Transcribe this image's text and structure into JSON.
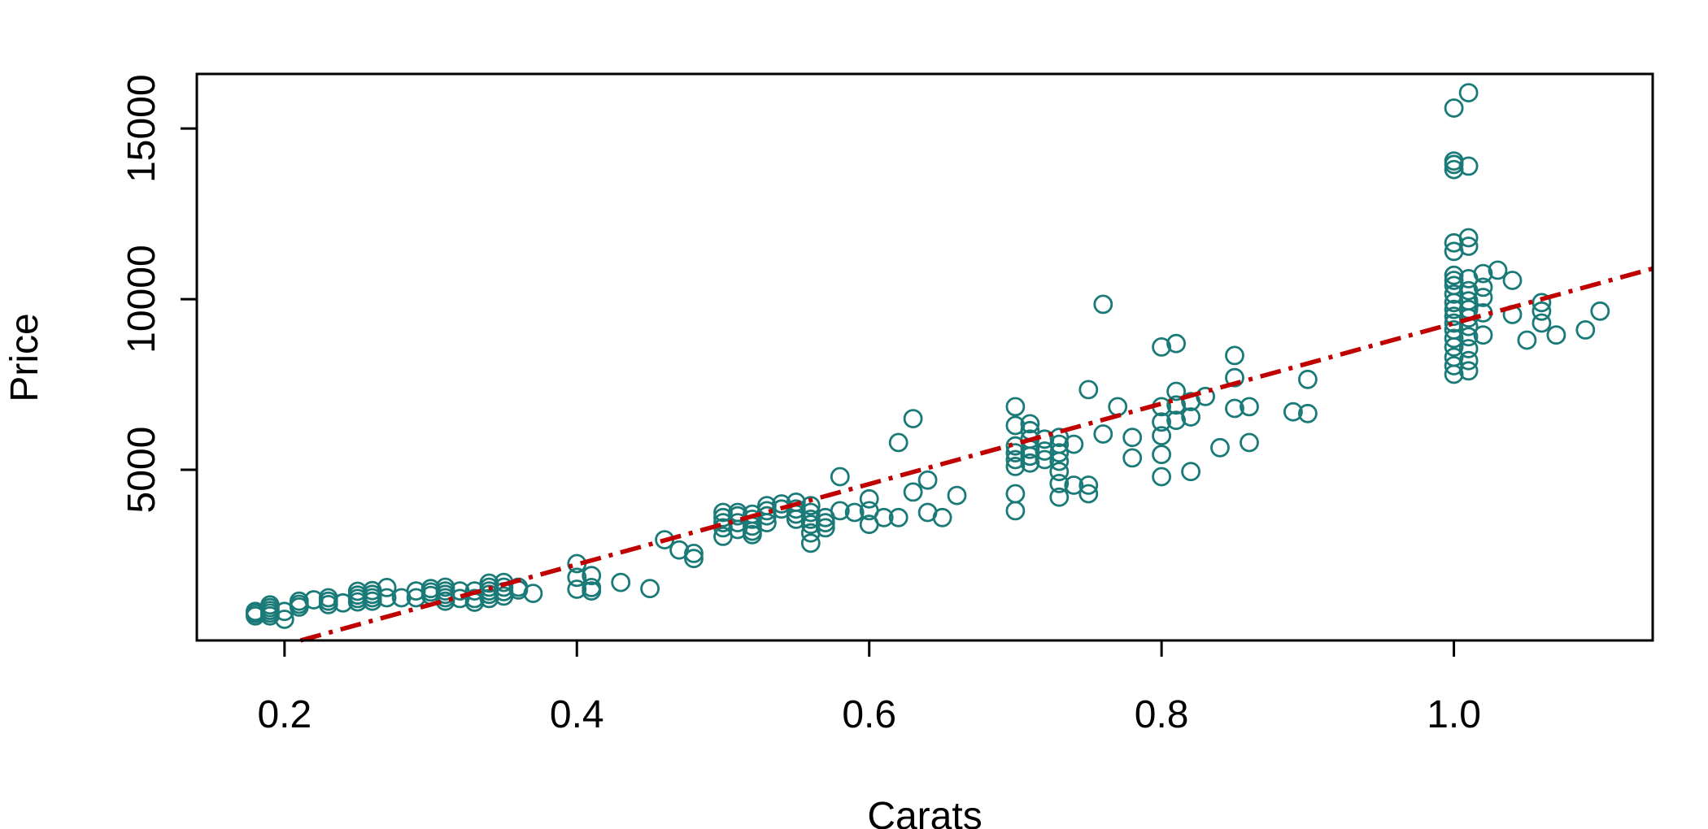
{
  "chart_data": {
    "type": "scatter",
    "title": "",
    "xlabel": "Carats",
    "ylabel": "Price",
    "xlim": [
      0.14,
      1.136
    ],
    "ylim": [
      0,
      16600
    ],
    "x_ticks": [
      {
        "value": 0.2,
        "label": "0.2"
      },
      {
        "value": 0.4,
        "label": "0.4"
      },
      {
        "value": 0.6,
        "label": "0.6"
      },
      {
        "value": 0.8,
        "label": "0.8"
      },
      {
        "value": 1.0,
        "label": "1.0"
      }
    ],
    "y_ticks": [
      {
        "value": 5000,
        "label": "5000"
      },
      {
        "value": 10000,
        "label": "10000"
      },
      {
        "value": 15000,
        "label": "15000"
      }
    ],
    "grid": false,
    "legend": "none",
    "point_color": "#1a7a78",
    "trendline": {
      "style": "dash-dot",
      "color": "#c00000",
      "intercept": -2485,
      "slope": 11780
    },
    "points": [
      [
        0.18,
        720
      ],
      [
        0.18,
        790
      ],
      [
        0.18,
        850
      ],
      [
        0.19,
        720
      ],
      [
        0.19,
        800
      ],
      [
        0.19,
        880
      ],
      [
        0.19,
        960
      ],
      [
        0.19,
        1040
      ],
      [
        0.2,
        620
      ],
      [
        0.2,
        850
      ],
      [
        0.21,
        980
      ],
      [
        0.21,
        1060
      ],
      [
        0.21,
        1150
      ],
      [
        0.22,
        1190
      ],
      [
        0.23,
        1050
      ],
      [
        0.23,
        1150
      ],
      [
        0.23,
        1250
      ],
      [
        0.24,
        1100
      ],
      [
        0.25,
        1130
      ],
      [
        0.25,
        1230
      ],
      [
        0.25,
        1330
      ],
      [
        0.25,
        1440
      ],
      [
        0.26,
        1150
      ],
      [
        0.26,
        1250
      ],
      [
        0.26,
        1350
      ],
      [
        0.26,
        1460
      ],
      [
        0.27,
        1250
      ],
      [
        0.27,
        1550
      ],
      [
        0.28,
        1250
      ],
      [
        0.29,
        1250
      ],
      [
        0.29,
        1450
      ],
      [
        0.3,
        1320
      ],
      [
        0.3,
        1420
      ],
      [
        0.3,
        1520
      ],
      [
        0.31,
        1150
      ],
      [
        0.31,
        1250
      ],
      [
        0.31,
        1350
      ],
      [
        0.31,
        1450
      ],
      [
        0.31,
        1560
      ],
      [
        0.32,
        1230
      ],
      [
        0.32,
        1450
      ],
      [
        0.33,
        1120
      ],
      [
        0.33,
        1230
      ],
      [
        0.33,
        1450
      ],
      [
        0.34,
        1230
      ],
      [
        0.34,
        1350
      ],
      [
        0.34,
        1450
      ],
      [
        0.34,
        1560
      ],
      [
        0.34,
        1680
      ],
      [
        0.35,
        1300
      ],
      [
        0.35,
        1430
      ],
      [
        0.35,
        1560
      ],
      [
        0.35,
        1700
      ],
      [
        0.36,
        1480
      ],
      [
        0.36,
        1560
      ],
      [
        0.37,
        1380
      ],
      [
        0.4,
        1500
      ],
      [
        0.4,
        1850
      ],
      [
        0.4,
        2250
      ],
      [
        0.41,
        1450
      ],
      [
        0.41,
        1550
      ],
      [
        0.41,
        1900
      ],
      [
        0.43,
        1700
      ],
      [
        0.45,
        1520
      ],
      [
        0.46,
        2950
      ],
      [
        0.47,
        2650
      ],
      [
        0.48,
        2400
      ],
      [
        0.48,
        2550
      ],
      [
        0.5,
        3050
      ],
      [
        0.5,
        3300
      ],
      [
        0.5,
        3450
      ],
      [
        0.5,
        3600
      ],
      [
        0.5,
        3750
      ],
      [
        0.51,
        3250
      ],
      [
        0.51,
        3450
      ],
      [
        0.51,
        3650
      ],
      [
        0.51,
        3750
      ],
      [
        0.52,
        3100
      ],
      [
        0.52,
        3200
      ],
      [
        0.52,
        3350
      ],
      [
        0.52,
        3550
      ],
      [
        0.52,
        3700
      ],
      [
        0.53,
        3450
      ],
      [
        0.53,
        3650
      ],
      [
        0.53,
        3800
      ],
      [
        0.53,
        3950
      ],
      [
        0.54,
        3850
      ],
      [
        0.54,
        4000
      ],
      [
        0.55,
        3550
      ],
      [
        0.55,
        3700
      ],
      [
        0.55,
        3850
      ],
      [
        0.55,
        4050
      ],
      [
        0.56,
        2850
      ],
      [
        0.56,
        3150
      ],
      [
        0.56,
        3400
      ],
      [
        0.56,
        3550
      ],
      [
        0.56,
        3750
      ],
      [
        0.56,
        3950
      ],
      [
        0.57,
        3300
      ],
      [
        0.57,
        3450
      ],
      [
        0.57,
        3600
      ],
      [
        0.58,
        3800
      ],
      [
        0.58,
        4800
      ],
      [
        0.59,
        3750
      ],
      [
        0.6,
        3400
      ],
      [
        0.6,
        3800
      ],
      [
        0.6,
        4150
      ],
      [
        0.61,
        3600
      ],
      [
        0.62,
        3600
      ],
      [
        0.62,
        5800
      ],
      [
        0.63,
        4350
      ],
      [
        0.63,
        6500
      ],
      [
        0.64,
        3750
      ],
      [
        0.64,
        4700
      ],
      [
        0.65,
        3600
      ],
      [
        0.66,
        4250
      ],
      [
        0.7,
        3800
      ],
      [
        0.7,
        4300
      ],
      [
        0.7,
        5100
      ],
      [
        0.7,
        5300
      ],
      [
        0.7,
        5500
      ],
      [
        0.7,
        5700
      ],
      [
        0.7,
        6300
      ],
      [
        0.7,
        6850
      ],
      [
        0.71,
        5200
      ],
      [
        0.71,
        5400
      ],
      [
        0.71,
        5600
      ],
      [
        0.71,
        5900
      ],
      [
        0.71,
        6150
      ],
      [
        0.71,
        6350
      ],
      [
        0.72,
        5300
      ],
      [
        0.72,
        5550
      ],
      [
        0.72,
        5900
      ],
      [
        0.73,
        4200
      ],
      [
        0.73,
        4600
      ],
      [
        0.73,
        4950
      ],
      [
        0.73,
        5250
      ],
      [
        0.73,
        5500
      ],
      [
        0.73,
        5750
      ],
      [
        0.73,
        5950
      ],
      [
        0.74,
        4550
      ],
      [
        0.74,
        5750
      ],
      [
        0.75,
        4300
      ],
      [
        0.75,
        4550
      ],
      [
        0.75,
        7350
      ],
      [
        0.76,
        6050
      ],
      [
        0.76,
        9850
      ],
      [
        0.77,
        6850
      ],
      [
        0.78,
        5350
      ],
      [
        0.78,
        5950
      ],
      [
        0.8,
        4800
      ],
      [
        0.8,
        5450
      ],
      [
        0.8,
        6000
      ],
      [
        0.8,
        6400
      ],
      [
        0.8,
        6850
      ],
      [
        0.8,
        8600
      ],
      [
        0.81,
        6450
      ],
      [
        0.81,
        6900
      ],
      [
        0.81,
        7300
      ],
      [
        0.81,
        8700
      ],
      [
        0.82,
        4950
      ],
      [
        0.82,
        6550
      ],
      [
        0.82,
        7000
      ],
      [
        0.83,
        7150
      ],
      [
        0.84,
        5650
      ],
      [
        0.85,
        6800
      ],
      [
        0.85,
        7700
      ],
      [
        0.85,
        8350
      ],
      [
        0.86,
        5800
      ],
      [
        0.86,
        6850
      ],
      [
        0.89,
        6700
      ],
      [
        0.9,
        6650
      ],
      [
        0.9,
        7650
      ],
      [
        1.0,
        7800
      ],
      [
        1.0,
        8050
      ],
      [
        1.0,
        8300
      ],
      [
        1.0,
        8600
      ],
      [
        1.0,
        8850
      ],
      [
        1.0,
        9100
      ],
      [
        1.0,
        9300
      ],
      [
        1.0,
        9500
      ],
      [
        1.0,
        9700
      ],
      [
        1.0,
        9900
      ],
      [
        1.0,
        10150
      ],
      [
        1.0,
        10400
      ],
      [
        1.0,
        10550
      ],
      [
        1.0,
        10700
      ],
      [
        1.0,
        11400
      ],
      [
        1.0,
        11650
      ],
      [
        1.0,
        13800
      ],
      [
        1.0,
        13950
      ],
      [
        1.0,
        14050
      ],
      [
        1.0,
        15600
      ],
      [
        1.01,
        7900
      ],
      [
        1.01,
        8200
      ],
      [
        1.01,
        8550
      ],
      [
        1.01,
        8900
      ],
      [
        1.01,
        9200
      ],
      [
        1.01,
        9450
      ],
      [
        1.01,
        9700
      ],
      [
        1.01,
        9950
      ],
      [
        1.01,
        10250
      ],
      [
        1.01,
        10600
      ],
      [
        1.01,
        11550
      ],
      [
        1.01,
        11800
      ],
      [
        1.01,
        13900
      ],
      [
        1.01,
        16050
      ],
      [
        1.02,
        8950
      ],
      [
        1.02,
        9600
      ],
      [
        1.02,
        10050
      ],
      [
        1.02,
        10350
      ],
      [
        1.02,
        10750
      ],
      [
        1.03,
        10850
      ],
      [
        1.04,
        9550
      ],
      [
        1.04,
        10550
      ],
      [
        1.05,
        8800
      ],
      [
        1.06,
        9300
      ],
      [
        1.06,
        9650
      ],
      [
        1.06,
        9900
      ],
      [
        1.07,
        8950
      ],
      [
        1.09,
        9100
      ],
      [
        1.1,
        9650
      ]
    ]
  }
}
